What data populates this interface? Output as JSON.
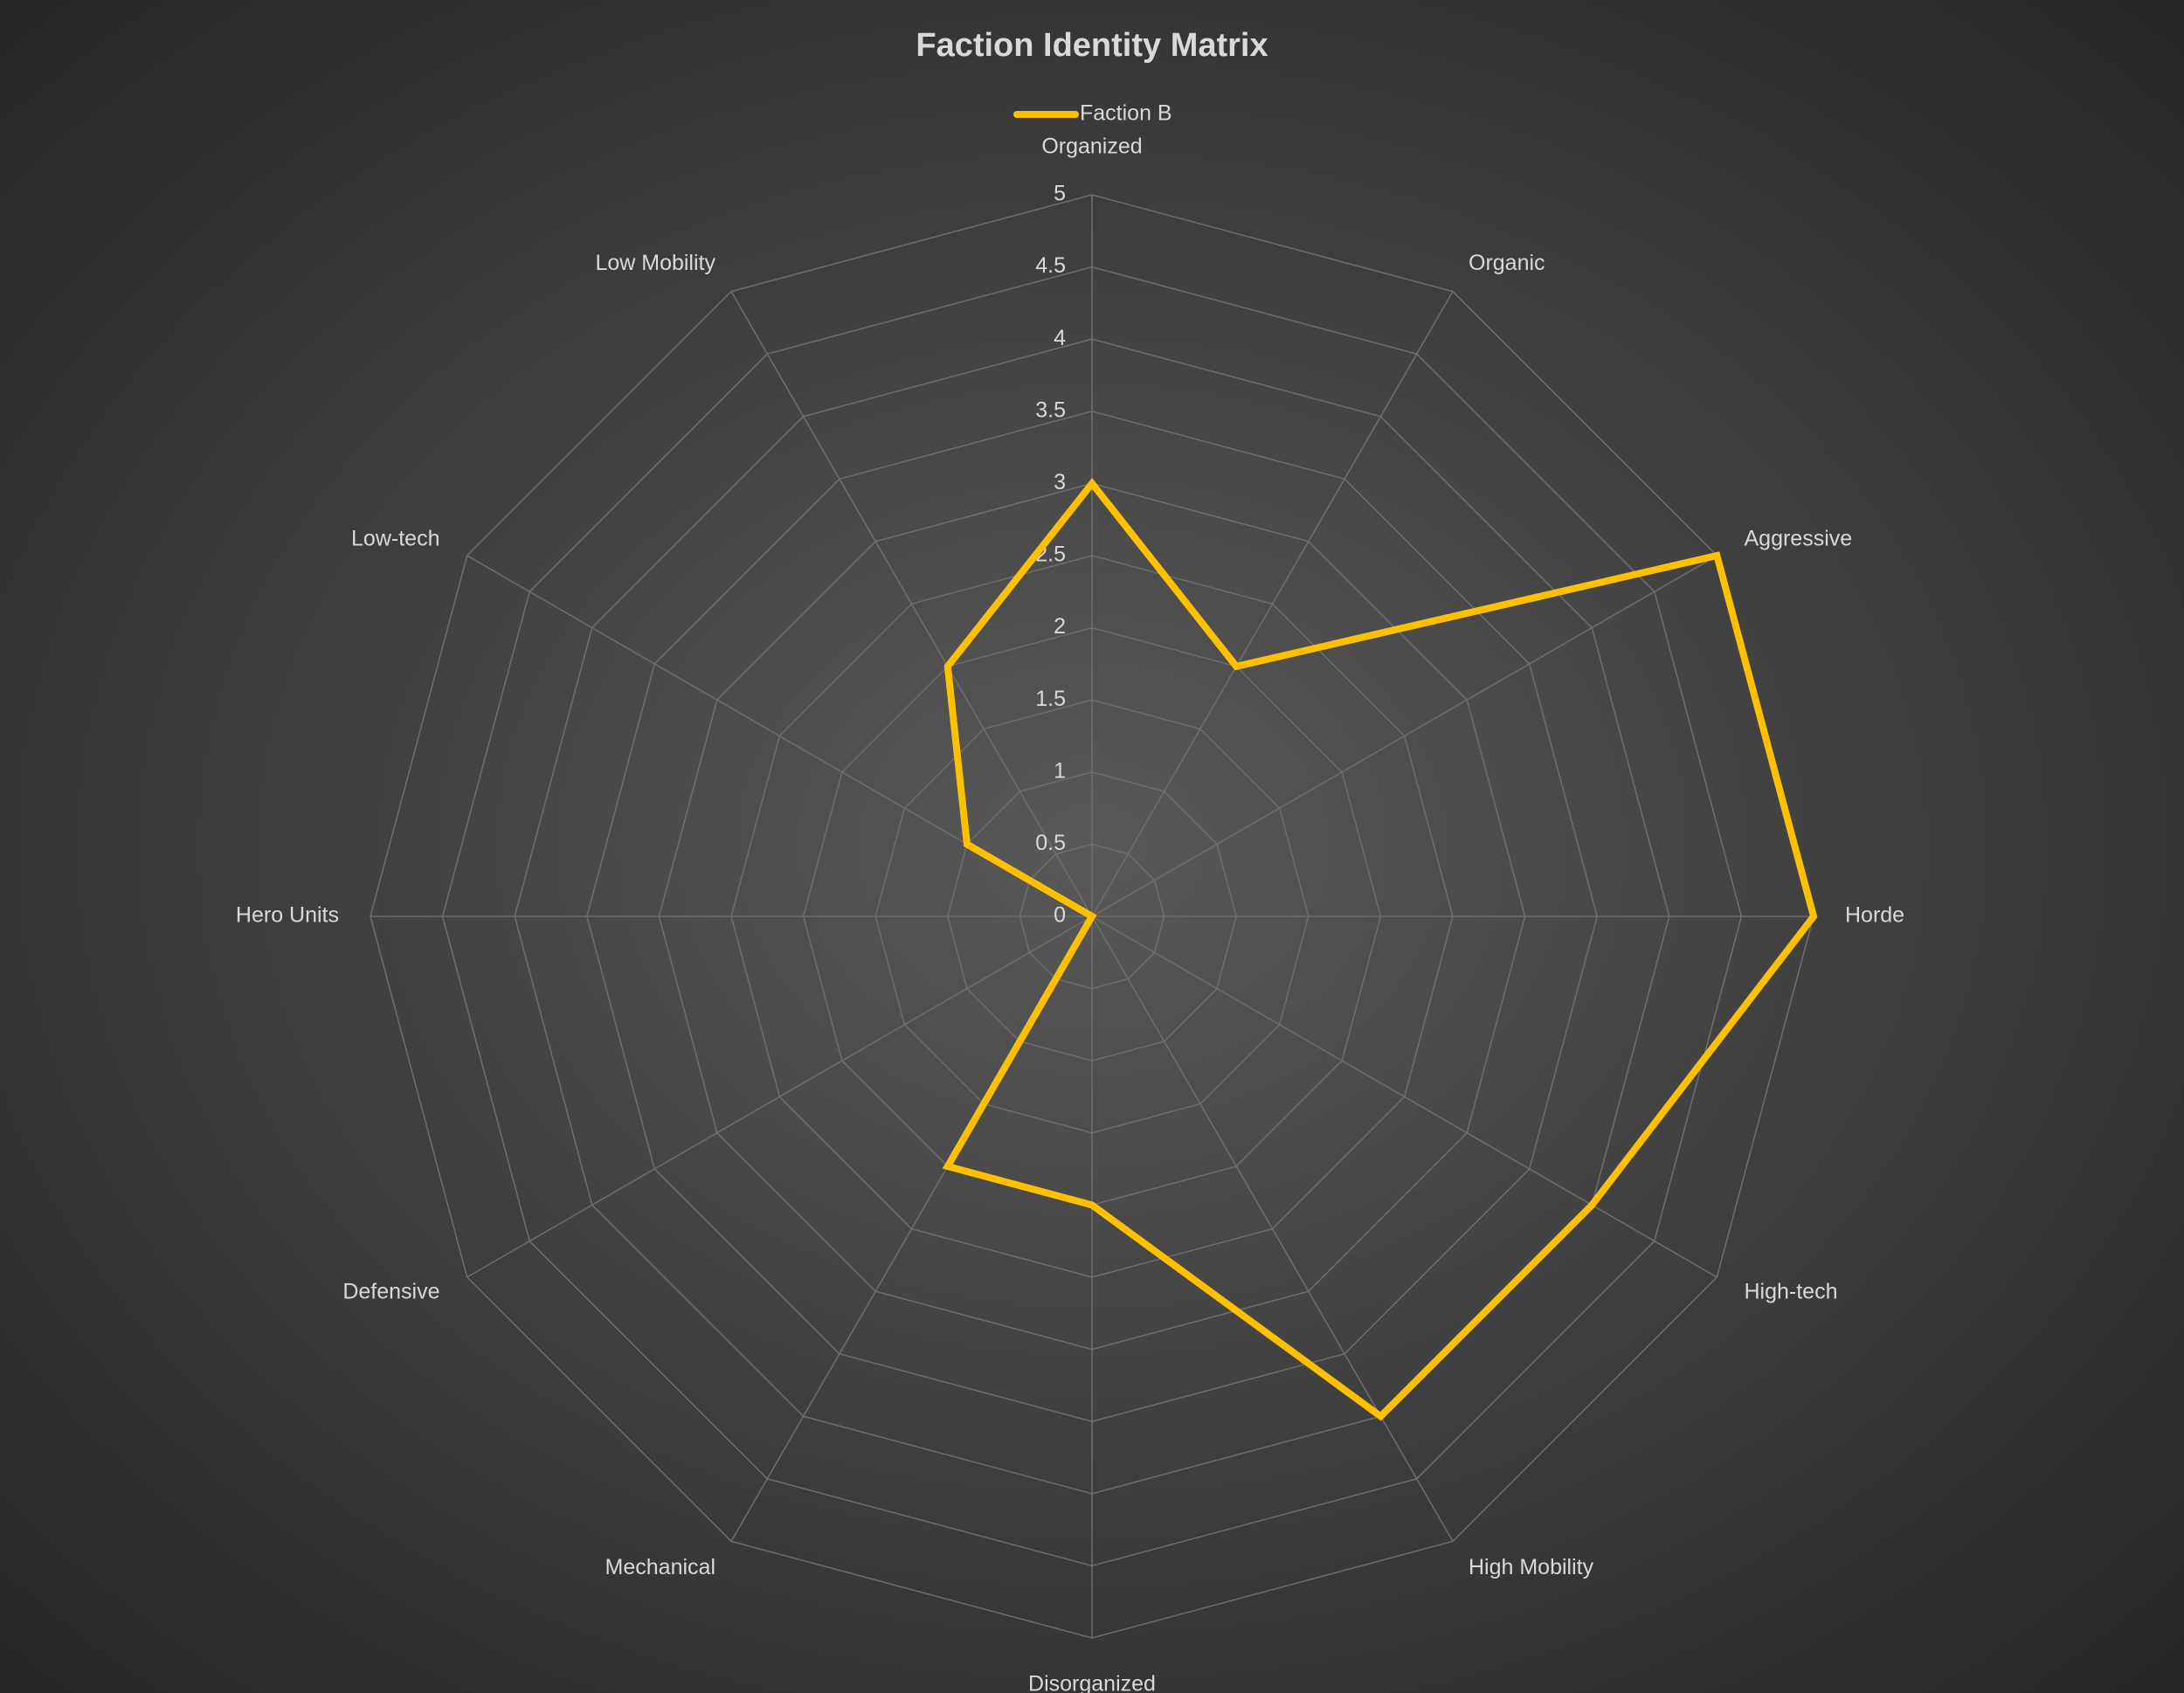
{
  "chart_data": {
    "type": "radar",
    "title": "Faction Identity Matrix",
    "categories": [
      "Organized",
      "Organic",
      "Aggressive",
      "Horde",
      "High-tech",
      "High Mobility",
      "Disorganized",
      "Mechanical",
      "Defensive",
      "Hero Units",
      "Low-tech",
      "Low Mobility"
    ],
    "series": [
      {
        "name": "Faction B",
        "color": "#ffc000",
        "values": [
          3,
          2,
          5,
          5,
          4,
          4,
          2,
          2,
          0,
          0,
          1,
          2
        ]
      }
    ],
    "ylim": [
      0,
      5
    ],
    "yticks": [
      0,
      0.5,
      1,
      1.5,
      2,
      2.5,
      3,
      3.5,
      4,
      4.5,
      5
    ],
    "grid": true,
    "legend": "top"
  }
}
